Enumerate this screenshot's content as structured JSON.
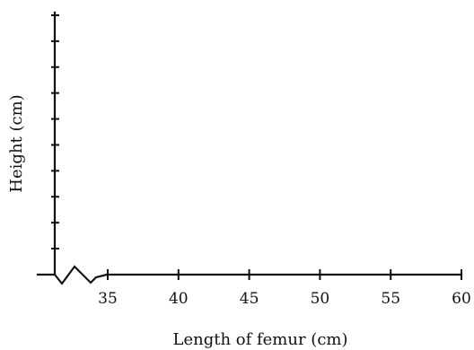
{
  "chart_data": {
    "type": "scatter",
    "title": "",
    "xlabel": "Length of femur (cm)",
    "ylabel": "Height (cm)",
    "xlim": [
      35,
      60
    ],
    "x_ticks": [
      35,
      40,
      45,
      50,
      55,
      60
    ],
    "x_tick_labels": [
      "35",
      "40",
      "45",
      "50",
      "55",
      "60"
    ],
    "y_tick_count": 10,
    "y_tick_labels": [],
    "x_axis_break": true,
    "grid": false,
    "series": []
  }
}
